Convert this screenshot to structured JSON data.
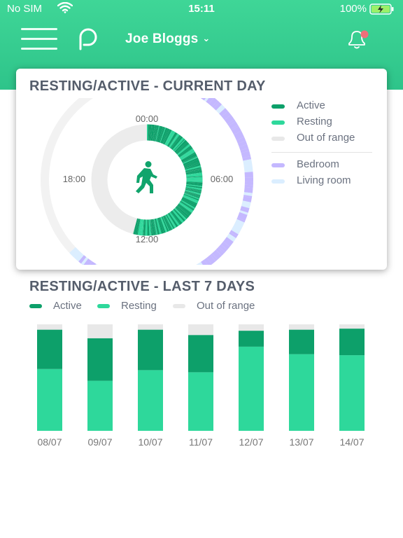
{
  "status_bar": {
    "carrier": "No SIM",
    "time": "15:11",
    "battery": "100%"
  },
  "header": {
    "user_name": "Joe Bloggs"
  },
  "colors": {
    "header": "#35cf90",
    "active": "#0da06a",
    "resting": "#2ed89b",
    "out_of_range": "#e8e8e8",
    "bedroom": "#c4b8ff",
    "living_room": "#dbeeff",
    "notification_dot": "#ee6f7a"
  },
  "current_day": {
    "title": "RESTING/ACTIVE - CURRENT DAY",
    "clock_labels": {
      "top": "00:00",
      "right": "06:00",
      "bottom": "12:00",
      "left": "18:00"
    },
    "legend_activity": [
      {
        "label": "Active",
        "color": "#0da06a"
      },
      {
        "label": "Resting",
        "color": "#2ed89b"
      },
      {
        "label": "Out of range",
        "color": "#e8e8e8"
      }
    ],
    "legend_location": [
      {
        "label": "Bedroom",
        "color": "#c4b8ff"
      },
      {
        "label": "Living room",
        "color": "#dbeeff"
      }
    ],
    "center_icon": "walking-person-icon"
  },
  "chart_data": {
    "type": "bar",
    "title": "RESTING/ACTIVE - LAST 7 DAYS",
    "categories": [
      "08/07",
      "09/07",
      "10/07",
      "11/07",
      "12/07",
      "13/07",
      "14/07"
    ],
    "stacked": true,
    "series": [
      {
        "name": "Resting",
        "values": [
          58,
          47,
          57,
          55,
          79,
          72,
          71
        ]
      },
      {
        "name": "Active",
        "values": [
          37,
          40,
          38,
          35,
          15,
          23,
          25
        ]
      },
      {
        "name": "Out of range",
        "values": [
          5,
          13,
          5,
          10,
          6,
          5,
          4
        ]
      }
    ],
    "ylim": [
      0,
      100
    ],
    "grid": false,
    "legend_position": "top-left"
  }
}
